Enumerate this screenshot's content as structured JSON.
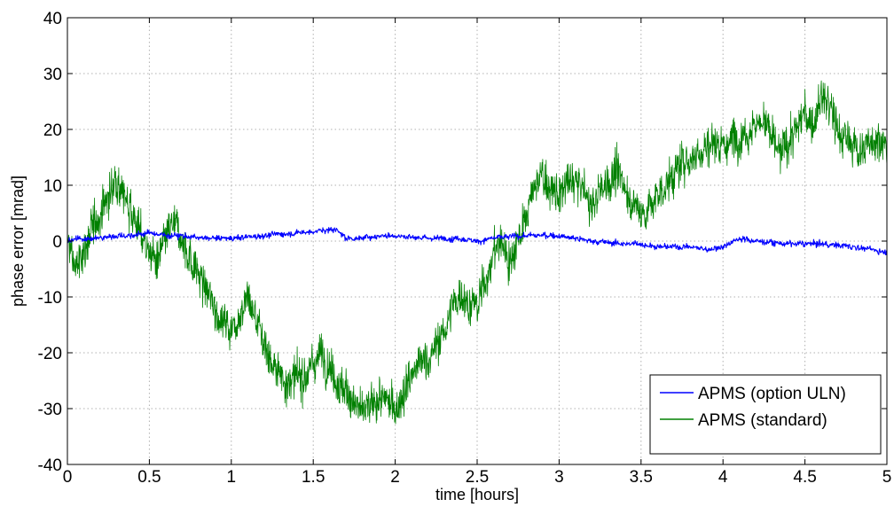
{
  "chart_data": {
    "type": "line",
    "title": "",
    "xlabel": "time [hours]",
    "ylabel": "phase error [mrad]",
    "xlim": [
      0,
      5
    ],
    "ylim": [
      -40,
      40
    ],
    "x_ticks": [
      "0",
      "0.5",
      "1",
      "1.5",
      "2",
      "2.5",
      "3",
      "3.5",
      "4",
      "4.5",
      "5"
    ],
    "y_ticks": [
      "40",
      "30",
      "20",
      "10",
      "0",
      "-10",
      "-20",
      "-30",
      "-40"
    ],
    "x_tick_values": [
      0,
      0.5,
      1,
      1.5,
      2,
      2.5,
      3,
      3.5,
      4,
      4.5,
      5
    ],
    "y_tick_values": [
      40,
      30,
      20,
      10,
      0,
      -10,
      -20,
      -30,
      -40
    ],
    "grid": true,
    "legend_position": "bottom-right",
    "series": [
      {
        "name": "APMS (option ULN)",
        "color": "#0000ff",
        "noise_mrad": 0.5,
        "x": [
          0,
          0.1,
          0.2,
          0.3,
          0.4,
          0.5,
          0.6,
          0.7,
          0.8,
          0.9,
          1.0,
          1.2,
          1.4,
          1.6,
          1.65,
          1.7,
          1.8,
          1.9,
          2.0,
          2.2,
          2.4,
          2.5,
          2.6,
          2.8,
          3.0,
          3.2,
          3.4,
          3.5,
          3.6,
          3.8,
          3.9,
          4.0,
          4.1,
          4.2,
          4.4,
          4.6,
          4.8,
          5.0
        ],
        "y": [
          0,
          0.5,
          0.5,
          1.0,
          1.0,
          1.5,
          1.0,
          1.0,
          0.5,
          0.5,
          0.5,
          1.0,
          1.5,
          2.0,
          2.0,
          0.5,
          0.5,
          1.0,
          1.0,
          0.5,
          0.5,
          0,
          0.5,
          1.0,
          1.0,
          0,
          -0.5,
          -0.5,
          -1.0,
          -1.0,
          -1.5,
          -1.0,
          0.5,
          0,
          -0.5,
          -0.5,
          -1.0,
          -2.0
        ]
      },
      {
        "name": "APMS (standard)",
        "color": "#008000",
        "noise_mrad": 3.5,
        "x": [
          0,
          0.05,
          0.1,
          0.15,
          0.2,
          0.25,
          0.3,
          0.35,
          0.4,
          0.45,
          0.5,
          0.55,
          0.6,
          0.65,
          0.7,
          0.75,
          0.8,
          0.85,
          0.9,
          0.95,
          1.0,
          1.05,
          1.1,
          1.15,
          1.2,
          1.25,
          1.3,
          1.35,
          1.4,
          1.45,
          1.5,
          1.55,
          1.6,
          1.65,
          1.7,
          1.75,
          1.8,
          1.85,
          1.9,
          1.95,
          2.0,
          2.05,
          2.1,
          2.15,
          2.2,
          2.25,
          2.3,
          2.35,
          2.4,
          2.45,
          2.5,
          2.55,
          2.6,
          2.65,
          2.7,
          2.75,
          2.8,
          2.85,
          2.9,
          2.95,
          3.0,
          3.05,
          3.1,
          3.15,
          3.2,
          3.25,
          3.3,
          3.35,
          3.4,
          3.45,
          3.5,
          3.55,
          3.6,
          3.65,
          3.7,
          3.75,
          3.8,
          3.85,
          3.9,
          3.95,
          4.0,
          4.05,
          4.1,
          4.15,
          4.2,
          4.25,
          4.3,
          4.35,
          4.4,
          4.45,
          4.5,
          4.55,
          4.6,
          4.65,
          4.7,
          4.75,
          4.8,
          4.85,
          4.9,
          4.95,
          5.0
        ],
        "y": [
          0,
          -5,
          -2,
          2,
          5,
          8,
          11,
          8,
          5,
          1,
          -2,
          -4,
          0,
          3,
          0,
          -3,
          -6,
          -9,
          -12,
          -14,
          -16,
          -13,
          -10,
          -14,
          -18,
          -22,
          -24,
          -25,
          -25,
          -24,
          -22,
          -20,
          -22,
          -25,
          -27,
          -29,
          -31,
          -30,
          -28,
          -29,
          -30,
          -27,
          -24,
          -22,
          -21,
          -19,
          -16,
          -12,
          -9,
          -11,
          -12,
          -7,
          -2,
          0,
          -4,
          1,
          4,
          10,
          12,
          9,
          8,
          10,
          11,
          9,
          6,
          9,
          11,
          12,
          10,
          7,
          5,
          6,
          8,
          10,
          12,
          14,
          15,
          16,
          17,
          18,
          17,
          18,
          19,
          20,
          21,
          22,
          18,
          15,
          18,
          20,
          23,
          21,
          26,
          24,
          20,
          18,
          17,
          16,
          18,
          19,
          16
        ]
      }
    ]
  }
}
